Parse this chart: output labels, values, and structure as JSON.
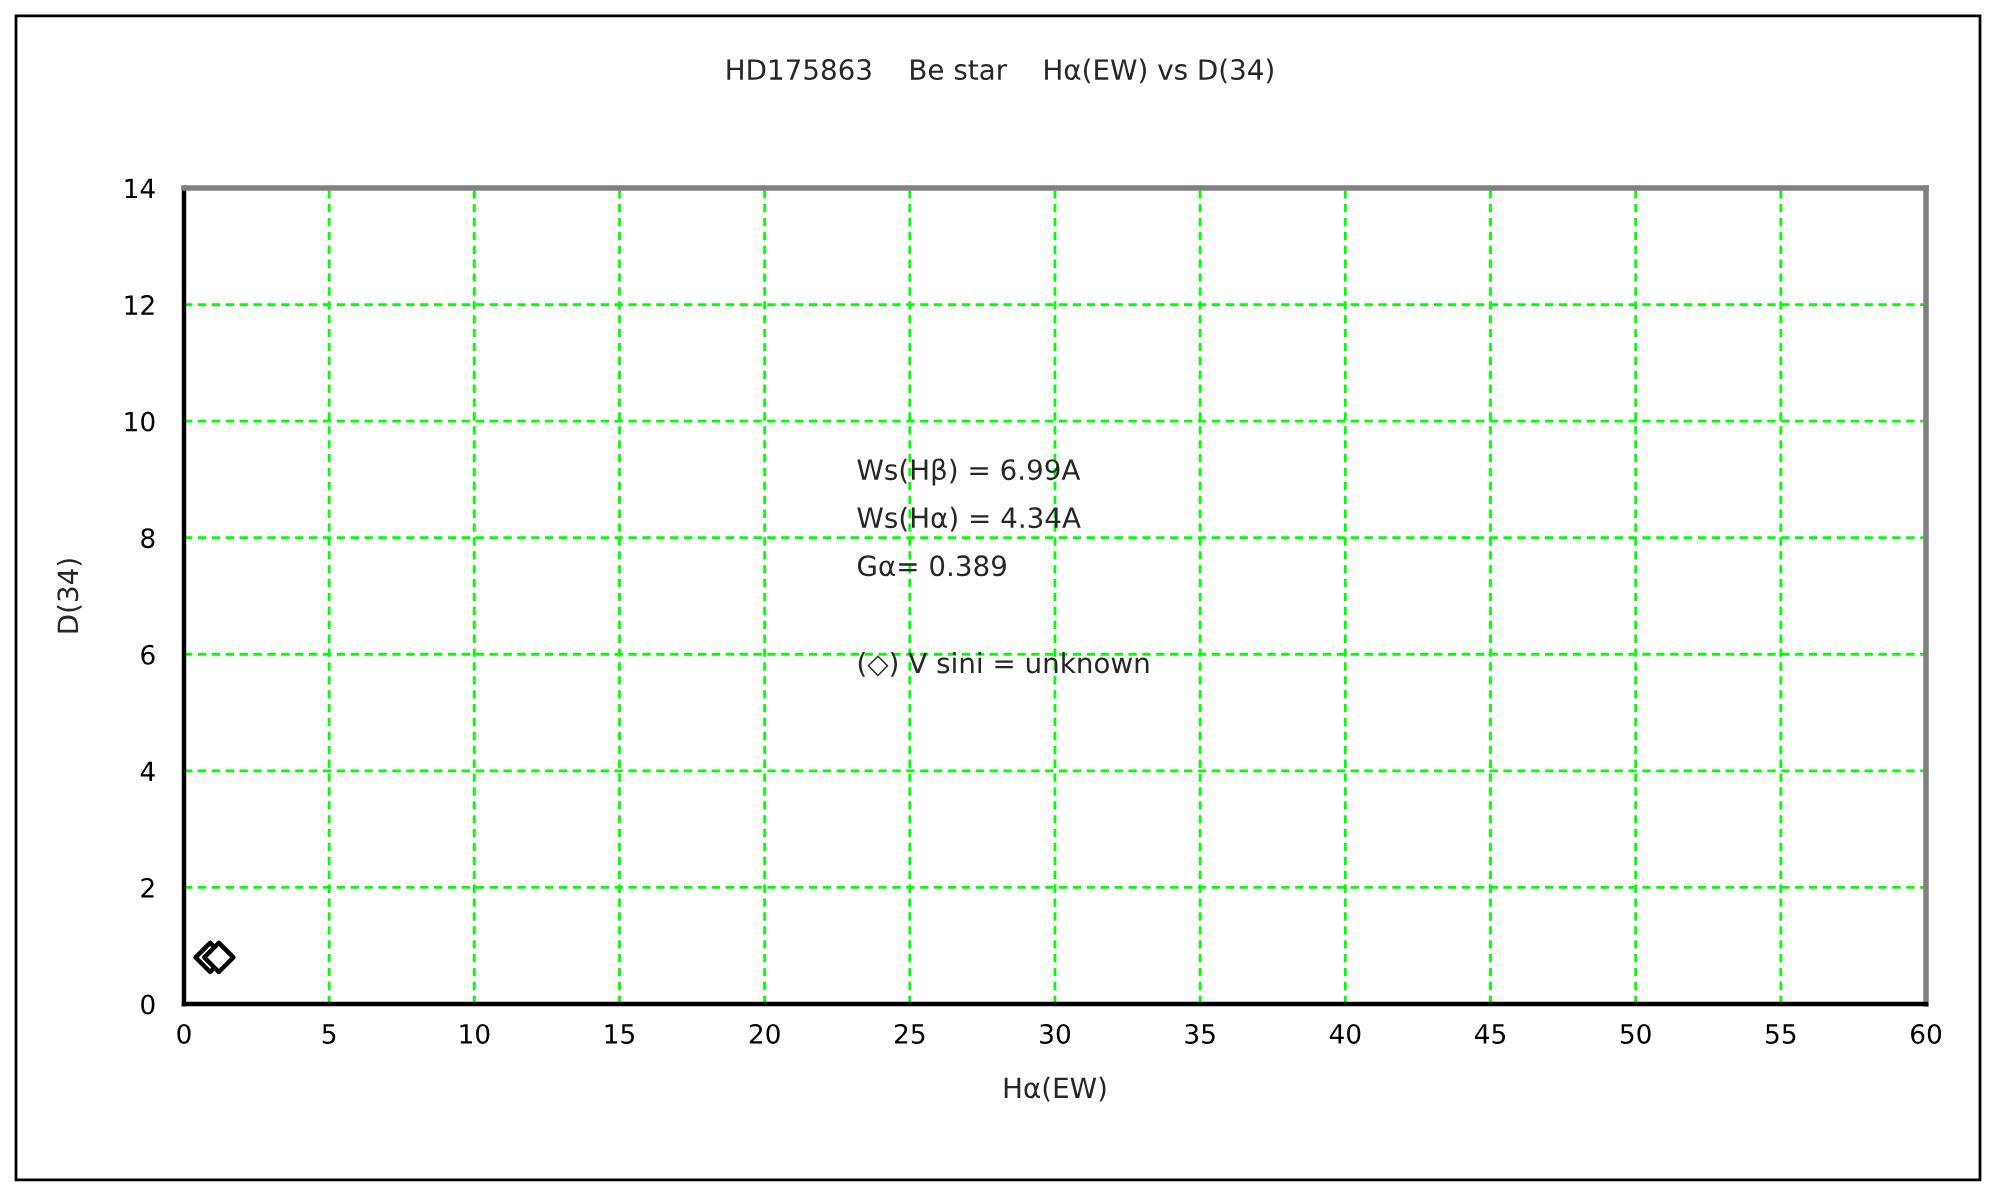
{
  "chart_data": {
    "type": "scatter",
    "title": "HD175863    Be star    Hα(EW) vs D(34)",
    "xlabel": "Hα(EW)",
    "ylabel": "D(34)",
    "annotations": [
      "Ws(Hβ) = 6.99A",
      "Ws(Hα) = 4.34A",
      "Gα= 0.389",
      "(◇) V sini = unknown"
    ],
    "x": [
      0.9,
      1.2
    ],
    "values": [
      0.8,
      0.8
    ],
    "color": "#000000",
    "marker": "diamond",
    "xlim": [
      0,
      60
    ],
    "xticks": [
      0,
      5,
      10,
      15,
      20,
      25,
      30,
      35,
      40,
      45,
      50,
      55,
      60
    ],
    "ylim": [
      0,
      14
    ],
    "yticks": [
      0,
      2,
      4,
      6,
      8,
      10,
      12,
      14
    ],
    "grid": true
  }
}
